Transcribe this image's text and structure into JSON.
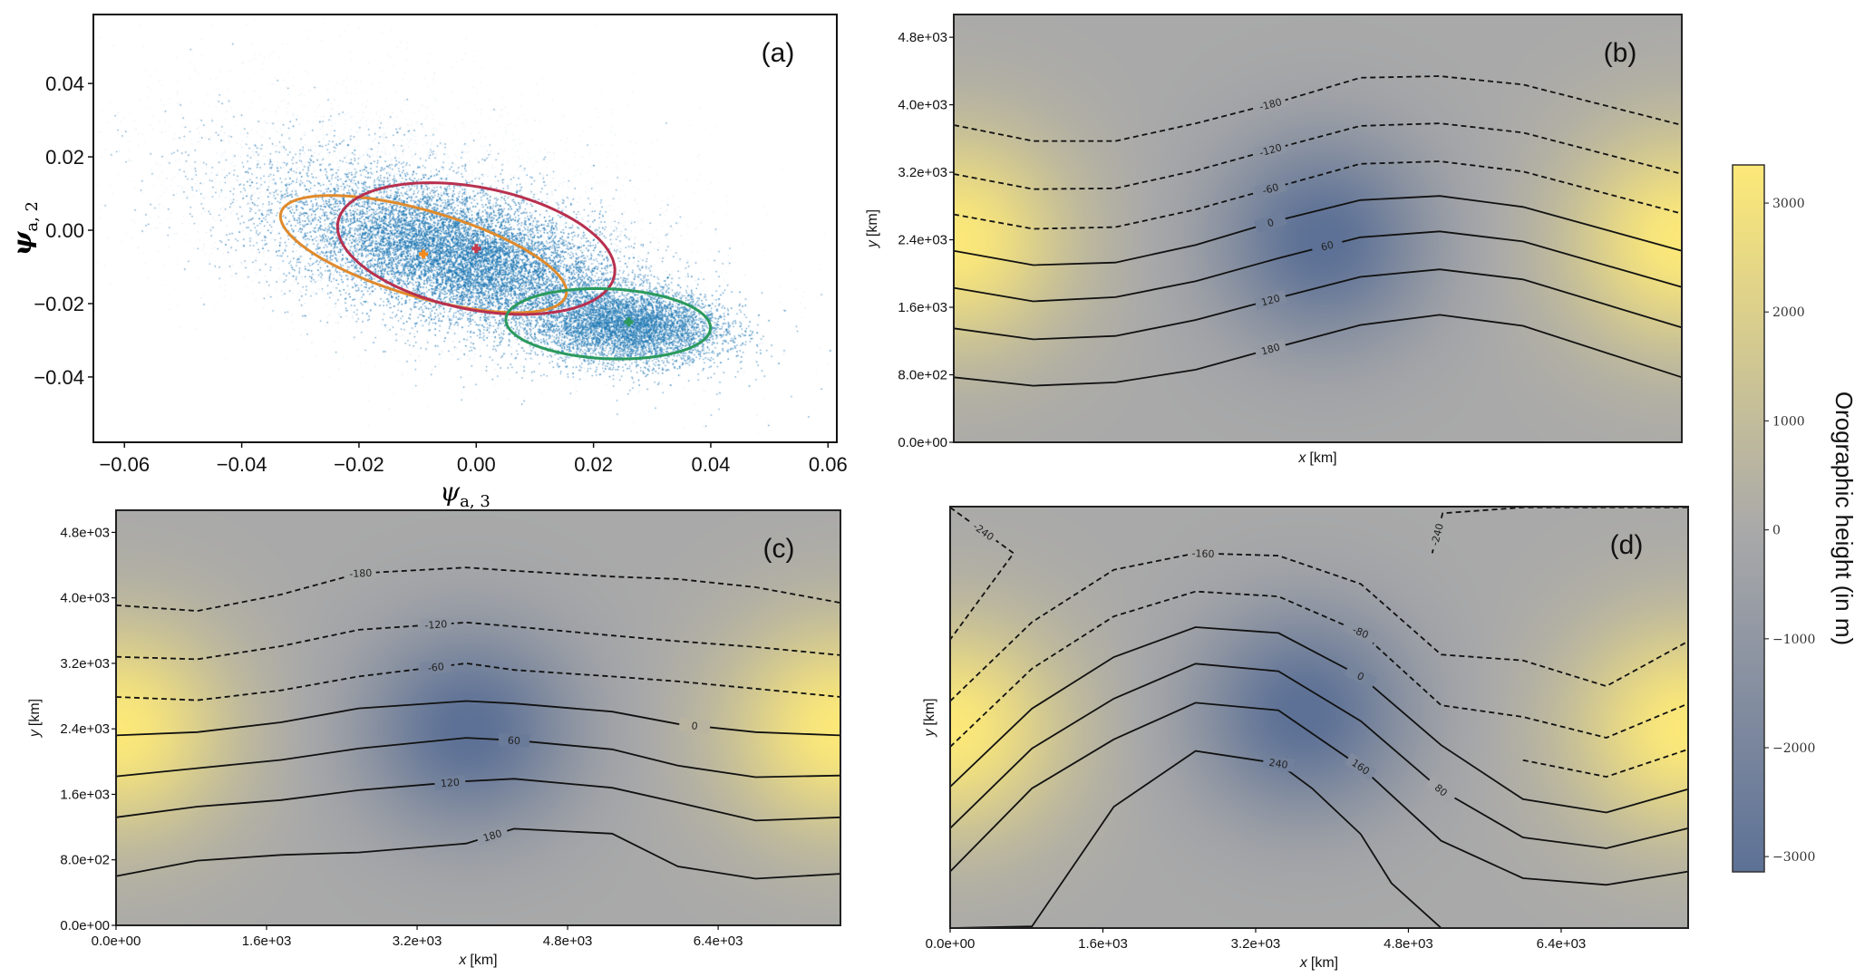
{
  "chart_data": [
    {
      "panel": "(a)",
      "type": "scatter",
      "xlim": [
        -0.0653,
        0.0615
      ],
      "ylim": [
        -0.0578,
        0.0588
      ],
      "xticks": [
        -0.06,
        -0.04,
        -0.02,
        0.0,
        0.02,
        0.04,
        0.06
      ],
      "xtick_labels": [
        "−0.06",
        "−0.04",
        "−0.02",
        "0.00",
        "0.02",
        "0.04",
        "0.06"
      ],
      "yticks": [
        -0.04,
        -0.02,
        0.0,
        0.02,
        0.04
      ],
      "ytick_labels": [
        "−0.04",
        "−0.02",
        "0.00",
        "0.02",
        "0.04"
      ],
      "xlabel": {
        "symbol": "ψ",
        "sub": "a, 3"
      },
      "ylabel": {
        "symbol": "ψ",
        "sub": "a, 2"
      },
      "point_color": "#1f77b4",
      "cluster_centers": [
        {
          "x": -0.009,
          "y": -0.0065,
          "color": "#f28a1e"
        },
        {
          "x": 0.0,
          "y": -0.005,
          "color": "#c23a4e"
        },
        {
          "x": 0.026,
          "y": -0.025,
          "color": "#2c9a5b"
        }
      ],
      "ellipses": [
        {
          "cx": -0.009,
          "cy": -0.0065,
          "a": 0.027,
          "b": 0.011,
          "angle_deg": -28,
          "color": "#e08a2c"
        },
        {
          "cx": 0.0,
          "cy": -0.005,
          "a": 0.025,
          "b": 0.016,
          "angle_deg": -25,
          "color": "#b8304f"
        },
        {
          "cx": 0.0225,
          "cy": -0.0255,
          "a": 0.0175,
          "b": 0.0095,
          "angle_deg": -5,
          "color": "#2a9a5c"
        }
      ]
    },
    {
      "panel": "(b)",
      "type": "heatmap",
      "xlim": [
        0,
        7700
      ],
      "ylim": [
        0,
        5070
      ],
      "xticks": [],
      "xtick_labels": [],
      "yticks": [
        0,
        800,
        1600,
        2400,
        3200,
        4000,
        4800
      ],
      "ytick_labels": [
        "0.0e+00",
        "8.0e+02",
        "1.6e+03",
        "2.4e+03",
        "3.2e+03",
        "4.0e+03",
        "4.8e+03"
      ],
      "xlabel": {
        "symbol": "x",
        "unit": "[km]"
      },
      "ylabel": {
        "symbol": "y",
        "unit": "[km]"
      },
      "contours": [
        {
          "level": -180,
          "label": "-180",
          "label_x": 3350,
          "x": [
            0,
            840,
            1710,
            2560,
            3430,
            4300,
            5140,
            6020,
            7700
          ],
          "y": [
            3760,
            3570,
            3570,
            3780,
            4030,
            4320,
            4340,
            4240,
            3760
          ]
        },
        {
          "level": -120,
          "label": "-120",
          "label_x": 3350,
          "x": [
            0,
            840,
            1710,
            2560,
            3430,
            4300,
            5140,
            6020,
            7700
          ],
          "y": [
            3180,
            3000,
            3010,
            3220,
            3490,
            3750,
            3780,
            3670,
            3180
          ]
        },
        {
          "level": -60,
          "label": "-60",
          "label_x": 3350,
          "x": [
            0,
            840,
            1710,
            2560,
            3430,
            4300,
            5140,
            6020,
            7700
          ],
          "y": [
            2700,
            2530,
            2550,
            2760,
            3030,
            3300,
            3330,
            3210,
            2710
          ]
        },
        {
          "level": 0,
          "label": "0",
          "label_x": 3350,
          "x": [
            0,
            840,
            1710,
            2560,
            3430,
            4300,
            5140,
            6020,
            7700
          ],
          "y": [
            2270,
            2100,
            2130,
            2340,
            2630,
            2870,
            2920,
            2790,
            2270
          ]
        },
        {
          "level": 60,
          "label": "60",
          "label_x": 3950,
          "x": [
            0,
            840,
            1710,
            2560,
            3430,
            4300,
            5140,
            6020,
            7700
          ],
          "y": [
            1830,
            1670,
            1720,
            1910,
            2180,
            2430,
            2500,
            2380,
            1840
          ]
        },
        {
          "level": 120,
          "label": "120",
          "label_x": 3350,
          "x": [
            0,
            840,
            1710,
            2560,
            3430,
            4300,
            5140,
            6020,
            7700
          ],
          "y": [
            1350,
            1220,
            1260,
            1450,
            1710,
            1960,
            2050,
            1930,
            1360
          ]
        },
        {
          "level": 180,
          "label": "180",
          "label_x": 3350,
          "x": [
            0,
            840,
            1710,
            2560,
            3430,
            4300,
            5140,
            6020,
            7700
          ],
          "y": [
            770,
            670,
            710,
            860,
            1130,
            1390,
            1510,
            1380,
            770
          ]
        }
      ]
    },
    {
      "panel": "(c)",
      "type": "heatmap",
      "xlim": [
        0,
        7700
      ],
      "ylim": [
        0,
        5070
      ],
      "xticks": [
        0,
        1600,
        3200,
        4800,
        6400
      ],
      "xtick_labels": [
        "0.0e+00",
        "1.6e+03",
        "3.2e+03",
        "4.8e+03",
        "6.4e+03"
      ],
      "yticks": [
        0,
        800,
        1600,
        2400,
        3200,
        4000,
        4800
      ],
      "ytick_labels": [
        "0.0e+00",
        "8.0e+02",
        "1.6e+03",
        "2.4e+03",
        "3.2e+03",
        "4.0e+03",
        "4.8e+03"
      ],
      "xlabel": {
        "symbol": "x",
        "unit": "[km]"
      },
      "ylabel": {
        "symbol": "y",
        "unit": "[km]"
      },
      "contours": [
        {
          "level": -180,
          "label": "-180",
          "label_x": 2600,
          "x": [
            0,
            864,
            1753,
            2579,
            3723,
            4231,
            5273,
            5972,
            6798,
            7700
          ],
          "y": [
            3910,
            3840,
            4040,
            4300,
            4370,
            4330,
            4260,
            4230,
            4130,
            3940
          ]
        },
        {
          "level": -120,
          "label": "-120",
          "label_x": 3400,
          "x": [
            0,
            864,
            1753,
            2579,
            3723,
            4231,
            5273,
            5972,
            6798,
            7700
          ],
          "y": [
            3280,
            3250,
            3410,
            3610,
            3700,
            3650,
            3540,
            3470,
            3400,
            3300
          ]
        },
        {
          "level": -60,
          "label": "-60",
          "label_x": 3400,
          "x": [
            0,
            864,
            1753,
            2579,
            3723,
            4231,
            5273,
            5972,
            6798,
            7700
          ],
          "y": [
            2790,
            2750,
            2870,
            3040,
            3200,
            3120,
            3040,
            2980,
            2890,
            2790
          ]
        },
        {
          "level": 0,
          "label": "0",
          "label_x": 6150,
          "x": [
            0,
            864,
            1753,
            2579,
            3723,
            4231,
            5273,
            5972,
            6798,
            7700
          ],
          "y": [
            2320,
            2360,
            2480,
            2650,
            2740,
            2710,
            2610,
            2460,
            2360,
            2320
          ]
        },
        {
          "level": 60,
          "label": "60",
          "label_x": 4230,
          "x": [
            0,
            864,
            1753,
            2579,
            3723,
            4231,
            5273,
            5972,
            6798,
            7700
          ],
          "y": [
            1820,
            1920,
            2020,
            2160,
            2290,
            2260,
            2150,
            1950,
            1810,
            1830
          ]
        },
        {
          "level": 120,
          "label": "120",
          "label_x": 3550,
          "x": [
            0,
            864,
            1753,
            2579,
            3723,
            4231,
            5273,
            5972,
            6798,
            7700
          ],
          "y": [
            1320,
            1450,
            1530,
            1650,
            1760,
            1790,
            1680,
            1500,
            1280,
            1320
          ]
        },
        {
          "level": 180,
          "label": "180",
          "label_x": 4000,
          "x": [
            0,
            864,
            1753,
            2579,
            3723,
            4231,
            5273,
            5972,
            6798,
            7700
          ],
          "y": [
            600,
            790,
            860,
            890,
            1000,
            1180,
            1120,
            720,
            570,
            630
          ]
        }
      ]
    },
    {
      "panel": "(d)",
      "type": "heatmap",
      "xlim": [
        0,
        7730
      ],
      "ylim": [
        0,
        5070
      ],
      "xticks": [
        0,
        1600,
        3200,
        4800,
        6400
      ],
      "xtick_labels": [
        "0.0e+00",
        "1.6e+03",
        "3.2e+03",
        "4.8e+03",
        "6.4e+03"
      ],
      "yticks": [],
      "ytick_labels": [],
      "xlabel": {
        "symbol": "x",
        "unit": "[km]"
      },
      "ylabel": {
        "symbol": "y",
        "unit": "[km]"
      },
      "contours": [
        {
          "level": -240,
          "label": "-240",
          "label_x": 350,
          "x": [
            0,
            665,
            0
          ],
          "y": [
            5060,
            4510,
            3470
          ]
        },
        {
          "level": -240,
          "label": "-240",
          "label_x": 5100,
          "x": [
            5049,
            5158,
            6000,
            7730
          ],
          "y": [
            4510,
            4990,
            5060,
            5060
          ]
        },
        {
          "level": -160,
          "label": "-160",
          "label_x": 2650,
          "x": [
            0,
            857,
            1714,
            2571,
            3439,
            4301,
            5143,
            6000,
            6873,
            7730
          ],
          "y": [
            2730,
            3680,
            4310,
            4510,
            4480,
            4140,
            3290,
            3220,
            2910,
            3450
          ]
        },
        {
          "level": -80,
          "label": "-80",
          "label_x": 4300,
          "x": [
            0,
            857,
            1714,
            2571,
            3439,
            4301,
            5143,
            6000,
            6873,
            7730
          ],
          "y": [
            2180,
            3120,
            3750,
            4050,
            3990,
            3560,
            2680,
            2540,
            2290,
            2700
          ]
        },
        {
          "level": -40,
          "label": "",
          "label_x": null,
          "x": [
            6000,
            6873,
            7730
          ],
          "y": [
            2020,
            1820,
            2150
          ]
        },
        {
          "level": 0,
          "label": "0",
          "label_x": 4300,
          "x": [
            0,
            857,
            1714,
            2571,
            3439,
            4301,
            5143,
            6000,
            6873,
            7730
          ],
          "y": [
            1700,
            2640,
            3260,
            3620,
            3550,
            3030,
            2200,
            1550,
            1390,
            1670
          ]
        },
        {
          "level": 80,
          "label": "80",
          "label_x": 5143,
          "x": [
            0,
            857,
            1714,
            2571,
            3439,
            4301,
            5143,
            6000,
            6873,
            7730
          ],
          "y": [
            1200,
            2160,
            2760,
            3180,
            3090,
            2490,
            1660,
            1090,
            960,
            1200
          ]
        },
        {
          "level": 160,
          "label": "160",
          "label_x": 4301,
          "x": [
            0,
            857,
            1714,
            2571,
            3439,
            4301,
            5143,
            6000,
            6873,
            7730
          ],
          "y": [
            680,
            1680,
            2270,
            2710,
            2620,
            1940,
            1050,
            600,
            520,
            680
          ]
        },
        {
          "level": 240,
          "label": "240",
          "label_x": 3439,
          "x": [
            0,
            857,
            1714,
            2571,
            3439,
            3792,
            4301,
            4623,
            5143
          ],
          "y": [
            0,
            20,
            1460,
            2130,
            1980,
            1680,
            1130,
            540,
            0
          ]
        }
      ]
    }
  ],
  "panel_labels": [
    "(a)",
    "(b)",
    "(c)",
    "(d)"
  ],
  "colorbar": {
    "label": "Orographic height (in m)",
    "range": [
      -3140,
      3350
    ],
    "ticks": [
      3000,
      2000,
      1000,
      0,
      -1000,
      -2000,
      -3000
    ],
    "tick_labels": [
      "3000",
      "2000",
      "1000",
      "0",
      "−1000",
      "−2000",
      "−3000"
    ],
    "colormap": [
      "#5d7196",
      "#a9a9a9",
      "#fde978"
    ]
  }
}
